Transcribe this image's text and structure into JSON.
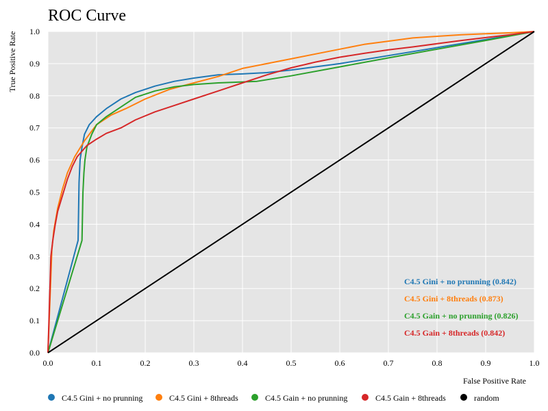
{
  "chart_data": {
    "type": "line",
    "title": "ROC Curve",
    "xlabel": "False Positive Rate",
    "ylabel": "True Positive Rate",
    "xlim": [
      0,
      1
    ],
    "ylim": [
      0,
      1
    ],
    "xticks": [
      "0.0",
      "0.1",
      "0.2",
      "0.3",
      "0.4",
      "0.5",
      "0.6",
      "0.7",
      "0.8",
      "0.9",
      "1.0"
    ],
    "yticks": [
      "0.0",
      "0.1",
      "0.2",
      "0.3",
      "0.4",
      "0.5",
      "0.6",
      "0.7",
      "0.8",
      "0.9",
      "1.0"
    ],
    "grid": true,
    "background": "#e5e5e5",
    "legend_position": "bottom",
    "series": [
      {
        "name": "C4.5 Gini + no prunning",
        "annotation": "C4.5 Gini + no prunning (0.842)",
        "color": "#1f77b4",
        "x": [
          0,
          0.062,
          0.064,
          0.066,
          0.07,
          0.075,
          0.085,
          0.1,
          0.12,
          0.15,
          0.18,
          0.22,
          0.26,
          0.3,
          0.35,
          0.4,
          0.45,
          0.5,
          0.6,
          0.7,
          0.8,
          0.9,
          1.0
        ],
        "y": [
          0,
          0.35,
          0.53,
          0.6,
          0.64,
          0.68,
          0.71,
          0.735,
          0.76,
          0.79,
          0.81,
          0.83,
          0.845,
          0.855,
          0.865,
          0.868,
          0.872,
          0.88,
          0.9,
          0.925,
          0.95,
          0.975,
          1.0
        ]
      },
      {
        "name": "C4.5 Gini + 8threads",
        "annotation": "C4.5 Gini + 8threads (0.873)",
        "color": "#ff7f0e",
        "x": [
          0,
          0.008,
          0.012,
          0.02,
          0.03,
          0.04,
          0.055,
          0.075,
          0.1,
          0.13,
          0.16,
          0.2,
          0.25,
          0.3,
          0.35,
          0.4,
          0.45,
          0.5,
          0.55,
          0.6,
          0.65,
          0.7,
          0.75,
          0.8,
          0.85,
          0.9,
          0.95,
          1.0
        ],
        "y": [
          0,
          0.32,
          0.38,
          0.45,
          0.51,
          0.56,
          0.61,
          0.66,
          0.71,
          0.74,
          0.76,
          0.79,
          0.82,
          0.84,
          0.86,
          0.885,
          0.9,
          0.915,
          0.93,
          0.945,
          0.96,
          0.97,
          0.98,
          0.985,
          0.99,
          0.993,
          0.996,
          1.0
        ]
      },
      {
        "name": "C4.5 Gain + no prunning",
        "annotation": "C4.5 Gain + no prunning (0.826)",
        "color": "#2ca02c",
        "x": [
          0,
          0.07,
          0.072,
          0.074,
          0.076,
          0.08,
          0.09,
          0.1,
          0.12,
          0.15,
          0.18,
          0.22,
          0.26,
          0.3,
          0.35,
          0.4,
          0.43,
          0.5,
          0.6,
          0.7,
          0.8,
          0.9,
          1.0
        ],
        "y": [
          0,
          0.35,
          0.5,
          0.56,
          0.6,
          0.64,
          0.68,
          0.71,
          0.735,
          0.765,
          0.795,
          0.815,
          0.828,
          0.835,
          0.84,
          0.843,
          0.845,
          0.862,
          0.89,
          0.918,
          0.945,
          0.972,
          1.0
        ]
      },
      {
        "name": "C4.5 Gain + 8threads",
        "annotation": "C4.5 Gain + 8threads (0.842)",
        "color": "#d62728",
        "x": [
          0,
          0.006,
          0.01,
          0.015,
          0.02,
          0.03,
          0.04,
          0.05,
          0.06,
          0.08,
          0.1,
          0.12,
          0.15,
          0.18,
          0.22,
          0.26,
          0.3,
          0.35,
          0.4,
          0.45,
          0.5,
          0.55,
          0.6,
          0.65,
          0.7,
          0.75,
          0.8,
          0.85,
          0.9,
          0.95,
          1.0
        ],
        "y": [
          0,
          0.3,
          0.35,
          0.4,
          0.44,
          0.49,
          0.54,
          0.58,
          0.61,
          0.645,
          0.665,
          0.683,
          0.7,
          0.725,
          0.75,
          0.77,
          0.79,
          0.815,
          0.84,
          0.865,
          0.887,
          0.905,
          0.92,
          0.932,
          0.943,
          0.952,
          0.962,
          0.972,
          0.981,
          0.99,
          1.0
        ]
      },
      {
        "name": "random",
        "color": "#000000",
        "x": [
          0,
          1
        ],
        "y": [
          0,
          1
        ]
      }
    ]
  }
}
